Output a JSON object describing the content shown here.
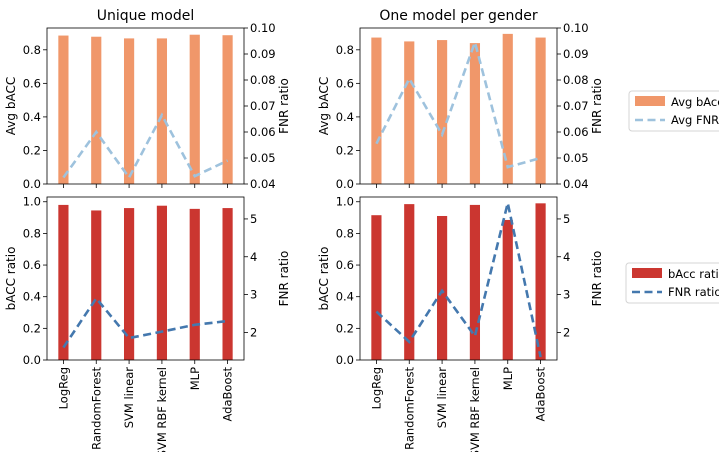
{
  "colors": {
    "avg_bacc_bar": "#f0976a",
    "avg_fnr_line": "#9ec2dd",
    "bacc_ratio_bar": "#cb3630",
    "fnr_ratio_line": "#4478ae"
  },
  "legends": [
    {
      "bar_label": "Avg bAcc",
      "line_label": "Avg FNR",
      "bar_color": "#f0976a",
      "line_color": "#9ec2dd"
    },
    {
      "bar_label": "bAcc ratio",
      "line_label": "FNR ratio",
      "bar_color": "#cb3630",
      "line_color": "#4478ae"
    }
  ],
  "chart_data": [
    {
      "type": "bar",
      "title": "Unique model",
      "categories": [
        "LogReg",
        "RandomForest",
        "SVM linear",
        "SVM RBF kernel",
        "MLP",
        "AdaBoost"
      ],
      "ylabel": "Avg bACC",
      "ylim": [
        0,
        0.93
      ],
      "yticks": [
        "0.0",
        "0.2",
        "0.4",
        "0.6",
        "0.8"
      ],
      "ylabel2": "FNR ratio",
      "y2lim": [
        0.04,
        0.1
      ],
      "y2ticks": [
        "0.04",
        "0.05",
        "0.06",
        "0.07",
        "0.08",
        "0.09",
        "0.10"
      ],
      "series": [
        {
          "name": "Avg bAcc",
          "kind": "bar",
          "axis": "left",
          "values": [
            0.885,
            0.878,
            0.868,
            0.868,
            0.89,
            0.887
          ]
        },
        {
          "name": "Avg FNR",
          "kind": "line",
          "axis": "right",
          "values": [
            0.0425,
            0.06,
            0.0425,
            0.0665,
            0.043,
            0.049
          ]
        }
      ],
      "show_xticklabels": false
    },
    {
      "type": "bar",
      "title": "One model per gender",
      "categories": [
        "LogReg",
        "RandomForest",
        "SVM linear",
        "SVM RBF kernel",
        "MLP",
        "AdaBoost"
      ],
      "ylabel": "Avg bACC",
      "ylim": [
        0,
        0.93
      ],
      "yticks": [
        "0.0",
        "0.2",
        "0.4",
        "0.6",
        "0.8"
      ],
      "ylabel2": "FNR ratio",
      "y2lim": [
        0.04,
        0.1
      ],
      "y2ticks": [
        "0.04",
        "0.05",
        "0.06",
        "0.07",
        "0.08",
        "0.09",
        "0.10"
      ],
      "series": [
        {
          "name": "Avg bAcc",
          "kind": "bar",
          "axis": "left",
          "values": [
            0.873,
            0.85,
            0.858,
            0.84,
            0.895,
            0.873
          ]
        },
        {
          "name": "Avg FNR",
          "kind": "line",
          "axis": "right",
          "values": [
            0.0555,
            0.0805,
            0.059,
            0.0945,
            0.0465,
            0.05
          ]
        }
      ],
      "show_xticklabels": false
    },
    {
      "type": "bar",
      "title": "",
      "categories": [
        "LogReg",
        "RandomForest",
        "SVM linear",
        "SVM RBF kernel",
        "MLP",
        "AdaBoost"
      ],
      "ylabel": "bACC ratio",
      "ylim": [
        0,
        1.03
      ],
      "yticks": [
        "0.0",
        "0.2",
        "0.4",
        "0.6",
        "0.8",
        "1.0"
      ],
      "ylabel2": "FNR ratio",
      "y2lim": [
        1.27,
        5.58
      ],
      "y2ticks": [
        "2",
        "3",
        "4",
        "5"
      ],
      "series": [
        {
          "name": "bAcc ratio",
          "kind": "bar",
          "axis": "left",
          "values": [
            0.98,
            0.945,
            0.96,
            0.975,
            0.955,
            0.96
          ]
        },
        {
          "name": "FNR ratio",
          "kind": "line",
          "axis": "right",
          "values": [
            1.6,
            2.9,
            1.85,
            2.02,
            2.2,
            2.3
          ]
        }
      ],
      "show_xticklabels": true
    },
    {
      "type": "bar",
      "title": "",
      "categories": [
        "LogReg",
        "RandomForest",
        "SVM linear",
        "SVM RBF kernel",
        "MLP",
        "AdaBoost"
      ],
      "ylabel": "bACC ratio",
      "ylim": [
        0,
        1.03
      ],
      "yticks": [
        "0.0",
        "0.2",
        "0.4",
        "0.6",
        "0.8",
        "1.0"
      ],
      "ylabel2": "FNR ratio",
      "y2lim": [
        1.27,
        5.58
      ],
      "y2ticks": [
        "2",
        "3",
        "4",
        "5"
      ],
      "series": [
        {
          "name": "bAcc ratio",
          "kind": "bar",
          "axis": "left",
          "values": [
            0.915,
            0.985,
            0.91,
            0.98,
            0.885,
            0.99
          ]
        },
        {
          "name": "FNR ratio",
          "kind": "line",
          "axis": "right",
          "values": [
            2.55,
            1.75,
            3.1,
            1.9,
            5.42,
            1.35
          ]
        }
      ],
      "show_xticklabels": true
    }
  ]
}
